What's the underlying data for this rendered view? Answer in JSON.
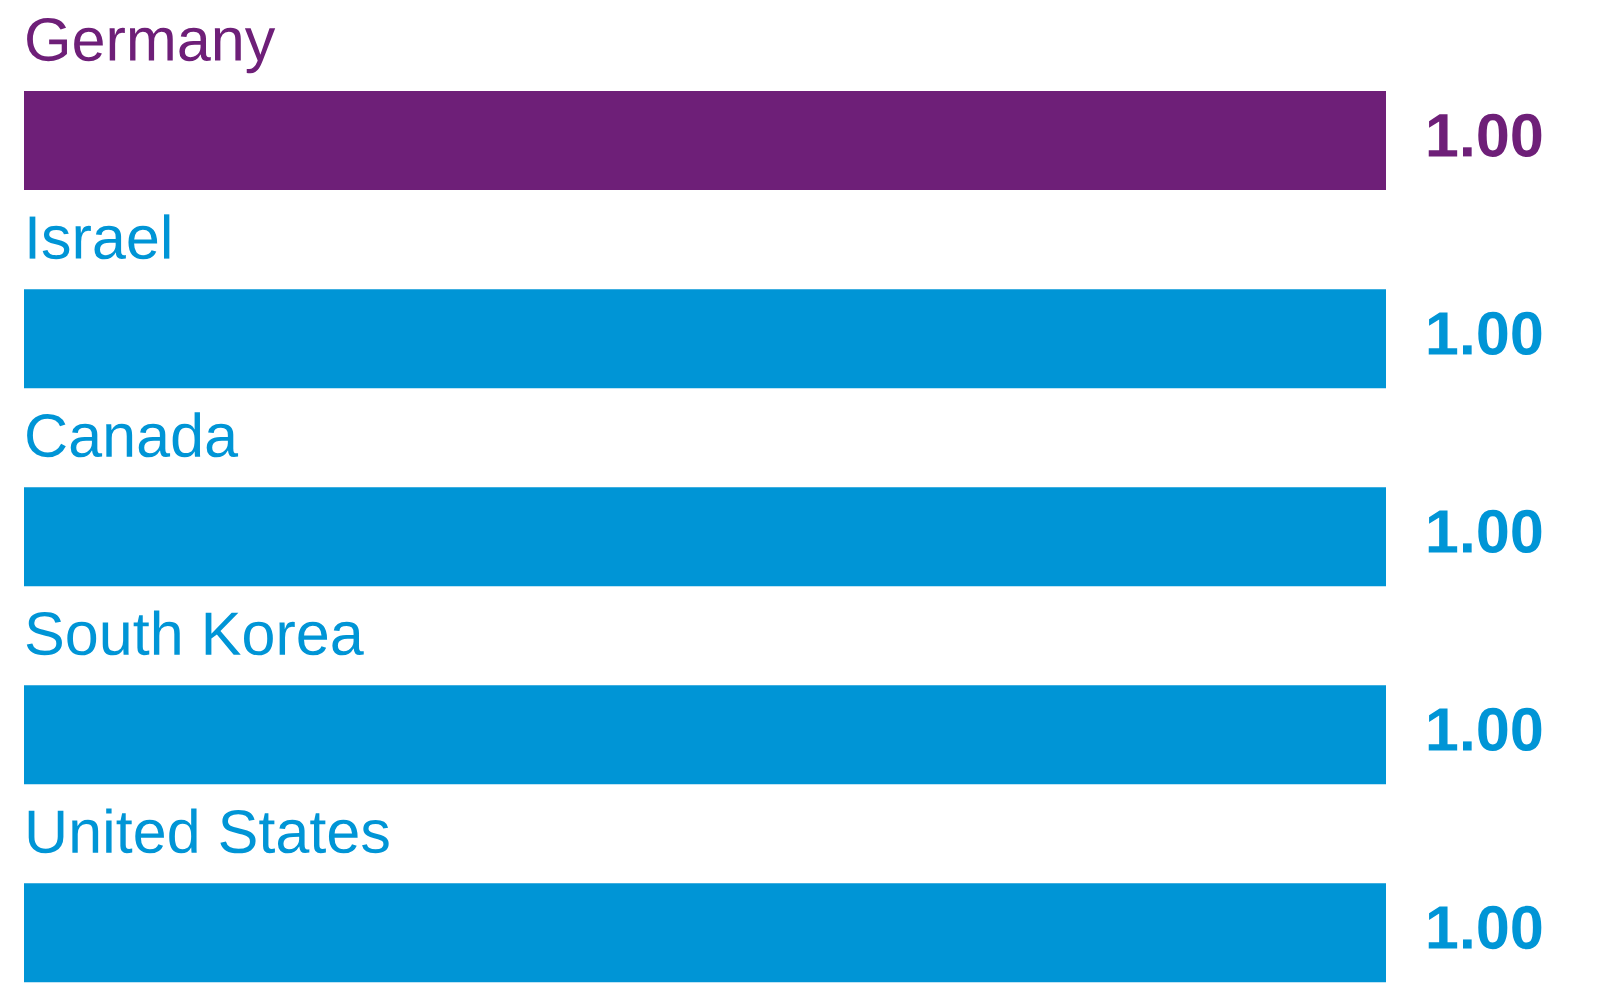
{
  "chart_data": {
    "type": "bar",
    "orientation": "horizontal",
    "categories": [
      "Germany",
      "Israel",
      "Canada",
      "South Korea",
      "United States"
    ],
    "values": [
      1.0,
      1.0,
      1.0,
      1.0,
      1.0
    ],
    "colors": [
      "#6e1f78",
      "#0095d6",
      "#0095d6",
      "#0095d6",
      "#0095d6"
    ],
    "value_labels": [
      "1.00",
      "1.00",
      "1.00",
      "1.00",
      "1.00"
    ],
    "tick_labels": "y"
  }
}
